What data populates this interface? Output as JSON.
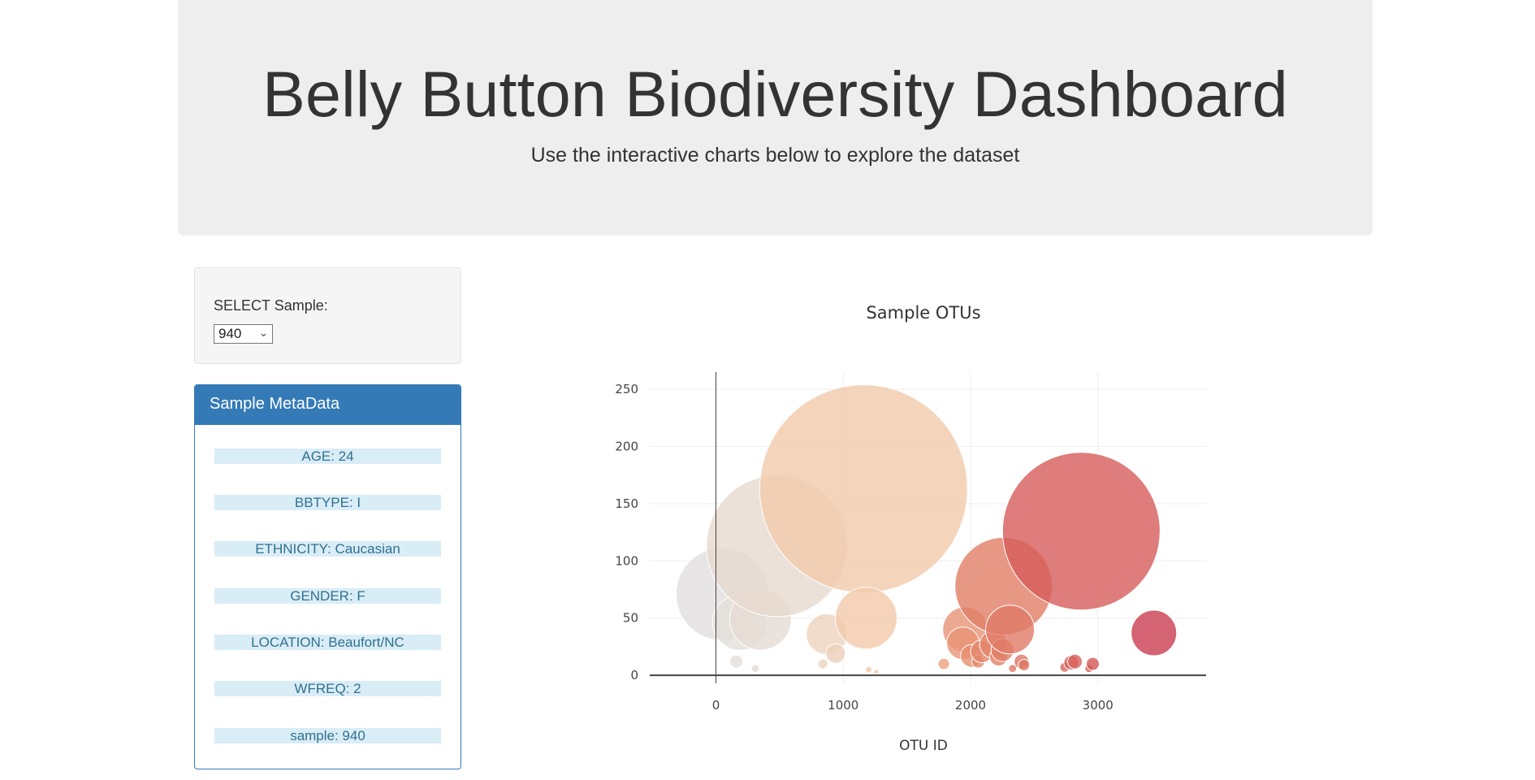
{
  "header": {
    "title": "Belly Button Biodiversity Dashboard",
    "subtitle": "Use the interactive charts below to explore the dataset"
  },
  "selector": {
    "label": "SELECT Sample:",
    "selected": "940"
  },
  "metadata": {
    "heading": "Sample MetaData",
    "rows": [
      "AGE: 24",
      "BBTYPE: I",
      "ETHNICITY: Caucasian",
      "GENDER: F",
      "LOCATION: Beaufort/NC",
      "WFREQ: 2",
      "sample: 940"
    ]
  },
  "chart_data": {
    "type": "scatter",
    "title": "Sample OTUs",
    "xlabel": "OTU ID",
    "ylabel": "",
    "xlim": [
      -520,
      3850
    ],
    "ylim": [
      -7,
      265
    ],
    "xticks": [
      0,
      1000,
      2000,
      3000
    ],
    "yticks": [
      0,
      50,
      100,
      150,
      200,
      250
    ],
    "grid": true,
    "colorscale": [
      "#e0e0e0",
      "#ead7c8",
      "#f5c39c",
      "#e4866a",
      "#d8615b",
      "#c83a4f"
    ],
    "points": [
      {
        "x": 50,
        "y": 71
      },
      {
        "x": 190,
        "y": 46
      },
      {
        "x": 350,
        "y": 49
      },
      {
        "x": 480,
        "y": 113
      },
      {
        "x": 1160,
        "y": 163
      },
      {
        "x": 870,
        "y": 36
      },
      {
        "x": 940,
        "y": 19
      },
      {
        "x": 1180,
        "y": 50
      },
      {
        "x": 160,
        "y": 12
      },
      {
        "x": 310,
        "y": 6
      },
      {
        "x": 840,
        "y": 10
      },
      {
        "x": 1200,
        "y": 5
      },
      {
        "x": 1260,
        "y": 3
      },
      {
        "x": 1790,
        "y": 10
      },
      {
        "x": 1960,
        "y": 40
      },
      {
        "x": 1940,
        "y": 28
      },
      {
        "x": 2010,
        "y": 17
      },
      {
        "x": 2060,
        "y": 12
      },
      {
        "x": 2090,
        "y": 21
      },
      {
        "x": 2180,
        "y": 27
      },
      {
        "x": 2220,
        "y": 16
      },
      {
        "x": 2250,
        "y": 22
      },
      {
        "x": 2260,
        "y": 78
      },
      {
        "x": 2310,
        "y": 40
      },
      {
        "x": 2330,
        "y": 6
      },
      {
        "x": 2400,
        "y": 12
      },
      {
        "x": 2420,
        "y": 9
      },
      {
        "x": 2740,
        "y": 7
      },
      {
        "x": 2790,
        "y": 11
      },
      {
        "x": 2820,
        "y": 12
      },
      {
        "x": 2870,
        "y": 126
      },
      {
        "x": 2930,
        "y": 6
      },
      {
        "x": 2960,
        "y": 10
      },
      {
        "x": 3440,
        "y": 37
      }
    ],
    "sizes": [
      57,
      34,
      38,
      87,
      128,
      25,
      12,
      38,
      8,
      5,
      6,
      4,
      3,
      7,
      28,
      20,
      14,
      8,
      14,
      17,
      11,
      14,
      60,
      30,
      5,
      9,
      7,
      6,
      9,
      9,
      97,
      5,
      8,
      28
    ]
  }
}
